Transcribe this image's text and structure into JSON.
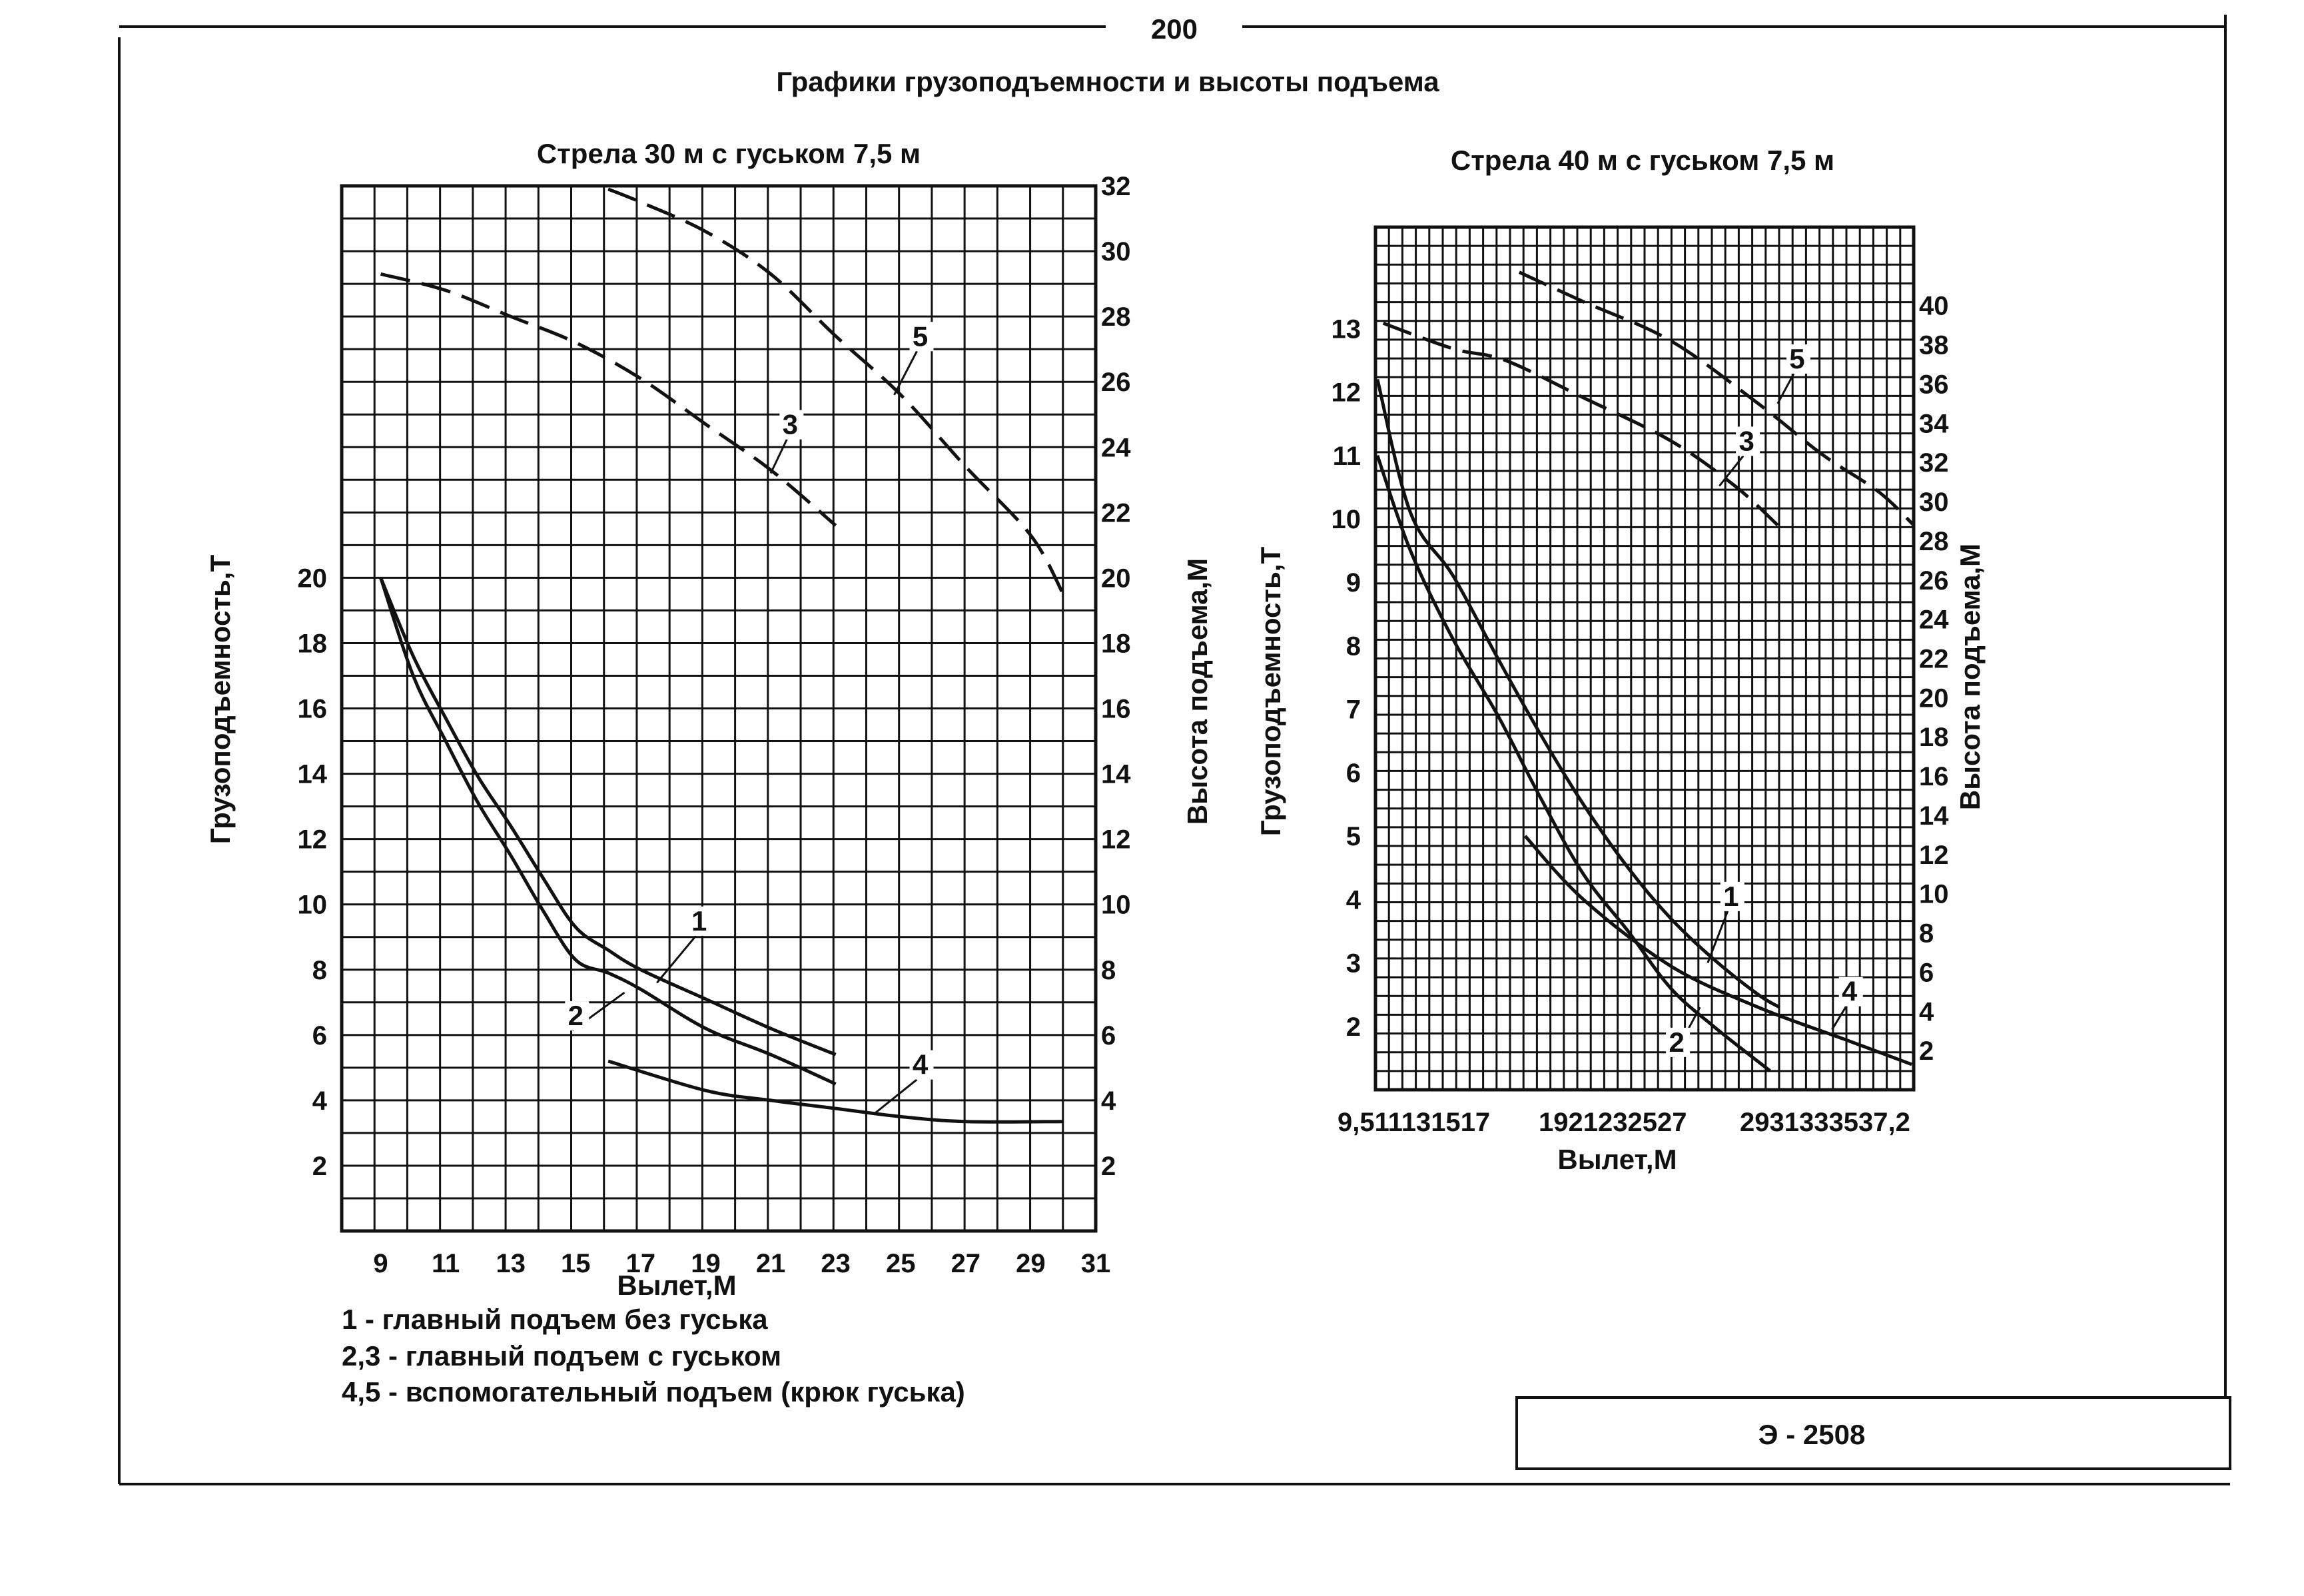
{
  "page_number": "200",
  "title": "Графики грузоподъемности и высоты подъема",
  "legend": [
    "1 - главный подъем без гуська",
    "2,3 - главный подъем с гуськом",
    "4,5 - вспомогательный подъем (крюк гуська)"
  ],
  "stamp_code": "Э - 2508",
  "chart_data": [
    {
      "type": "line",
      "title": "Стрела 30 м  с гуськом 7,5 м",
      "xlabel": "Вылет,М",
      "ylabel": "Грузоподъемность,Т",
      "y2label": "Высота подъема,М",
      "xlim": [
        7.8,
        31
      ],
      "ylim": [
        0,
        32
      ],
      "y2lim": [
        0,
        32
      ],
      "grid": true,
      "x_tick_labels": [
        "9",
        "11",
        "13",
        "15",
        "17",
        "19",
        "21",
        "23",
        "25",
        "27",
        "29",
        "31"
      ],
      "x_ticks": [
        9,
        11,
        13,
        15,
        17,
        19,
        21,
        23,
        25,
        27,
        29,
        31
      ],
      "y_tick_labels": [
        "2",
        "4",
        "6",
        "8",
        "10",
        "12",
        "14",
        "16",
        "18",
        "20"
      ],
      "y_ticks": [
        2,
        4,
        6,
        8,
        10,
        12,
        14,
        16,
        18,
        20
      ],
      "y2_tick_labels": [
        "2",
        "4",
        "6",
        "8",
        "10",
        "12",
        "14",
        "16",
        "18",
        "20",
        "22",
        "24",
        "26",
        "28",
        "30",
        "32"
      ],
      "y2_ticks": [
        2,
        4,
        6,
        8,
        10,
        12,
        14,
        16,
        18,
        20,
        22,
        24,
        26,
        28,
        30,
        32
      ],
      "series": [
        {
          "name": "1",
          "axis": "load",
          "style": "solid",
          "x": [
            9,
            10,
            11,
            12,
            13,
            14,
            15,
            16,
            17,
            19,
            21,
            23
          ],
          "y": [
            20,
            17.6,
            15.7,
            13.9,
            12.4,
            10.8,
            9.3,
            8.6,
            8.0,
            7.1,
            6.2,
            5.4
          ]
        },
        {
          "name": "2",
          "axis": "load",
          "style": "solid",
          "x": [
            9,
            10,
            11,
            12,
            13,
            14,
            15,
            16,
            17,
            19,
            21,
            23
          ],
          "y": [
            20,
            17,
            15,
            13.1,
            11.5,
            9.8,
            8.3,
            7.9,
            7.4,
            6.2,
            5.4,
            4.5
          ]
        },
        {
          "name": "3",
          "axis": "height",
          "style": "dashed",
          "x": [
            9,
            11,
            13,
            15,
            17,
            19,
            21,
            23
          ],
          "y": [
            29.3,
            28.8,
            28.0,
            27.2,
            26.1,
            24.7,
            23.3,
            21.6
          ]
        },
        {
          "name": "4",
          "axis": "load",
          "style": "solid",
          "x": [
            16,
            19,
            21,
            23,
            25,
            27,
            30
          ],
          "y": [
            5.2,
            4.3,
            4.0,
            3.75,
            3.5,
            3.35,
            3.35
          ]
        },
        {
          "name": "5",
          "axis": "height",
          "style": "dashed",
          "x": [
            16,
            17,
            19,
            21,
            23,
            25,
            27,
            29,
            30
          ],
          "y": [
            31.9,
            31.5,
            30.6,
            29.3,
            27.4,
            25.6,
            23.4,
            21.3,
            19.5
          ]
        }
      ]
    },
    {
      "type": "line",
      "title": "Стрела 40 м  с гуськом 7,5 м",
      "xlabel": "Вылет,М",
      "ylabel": "Грузоподъемность,Т",
      "y2label": "Высота подъема,М",
      "xlim": [
        9.5,
        37.2
      ],
      "ylim": [
        1.0,
        14.6
      ],
      "y2lim": [
        0,
        44
      ],
      "grid": true,
      "x_tick_labels": [
        "9,5",
        "11",
        "13",
        "15",
        "17",
        "19",
        "21",
        "23",
        "25",
        "27",
        "29",
        "31",
        "33",
        "35",
        "37,2"
      ],
      "y_tick_labels": [
        "2",
        "3",
        "4",
        "5",
        "6",
        "7",
        "8",
        "9",
        "10",
        "11",
        "12",
        "13"
      ],
      "y_ticks": [
        2,
        3,
        4,
        5,
        6,
        7,
        8,
        9,
        10,
        11,
        12,
        13
      ],
      "y2_tick_labels": [
        "2",
        "4",
        "6",
        "8",
        "10",
        "12",
        "14",
        "16",
        "18",
        "20",
        "22",
        "24",
        "26",
        "28",
        "30",
        "32",
        "34",
        "36",
        "38",
        "40"
      ],
      "y2_ticks": [
        2,
        4,
        6,
        8,
        10,
        12,
        14,
        16,
        18,
        20,
        22,
        24,
        26,
        28,
        30,
        32,
        34,
        36,
        38,
        40
      ],
      "series": [
        {
          "name": "1",
          "axis": "load",
          "style": "solid",
          "x": [
            9.6,
            11.3,
            13.5,
            15.8,
            18,
            20.2,
            22.5,
            24.7,
            26.9,
            29.2,
            30.3
          ],
          "y": [
            12.2,
            10.1,
            9.1,
            7.8,
            6.6,
            5.5,
            4.5,
            3.7,
            3.06,
            2.5,
            2.3
          ]
        },
        {
          "name": "2",
          "axis": "load",
          "style": "solid",
          "x": [
            9.6,
            11.3,
            13.5,
            15.8,
            18,
            20.2,
            22.5,
            24.7,
            26.9,
            29.8
          ],
          "y": [
            11.0,
            9.5,
            8.1,
            6.9,
            5.6,
            4.4,
            3.5,
            2.6,
            2.0,
            1.3
          ]
        },
        {
          "name": "3",
          "axis": "height",
          "style": "dashed",
          "x": [
            9.9,
            13.5,
            16.2,
            20.2,
            24.7,
            28.0,
            30.2
          ],
          "y": [
            39.1,
            37.8,
            37.2,
            35.3,
            33.1,
            30.8,
            28.8
          ]
        },
        {
          "name": "4",
          "axis": "load",
          "style": "solid",
          "x": [
            17.2,
            20.2,
            24.7,
            29.2,
            33.6,
            37.1
          ],
          "y": [
            5.0,
            4.0,
            2.95,
            2.3,
            1.8,
            1.4
          ]
        },
        {
          "name": "5",
          "axis": "height",
          "style": "dashed",
          "x": [
            16.9,
            20.2,
            24.7,
            29.2,
            32.5,
            35.4,
            37.2
          ],
          "y": [
            41.7,
            40.2,
            38.2,
            35.0,
            32.4,
            30.5,
            28.8
          ]
        }
      ]
    }
  ]
}
